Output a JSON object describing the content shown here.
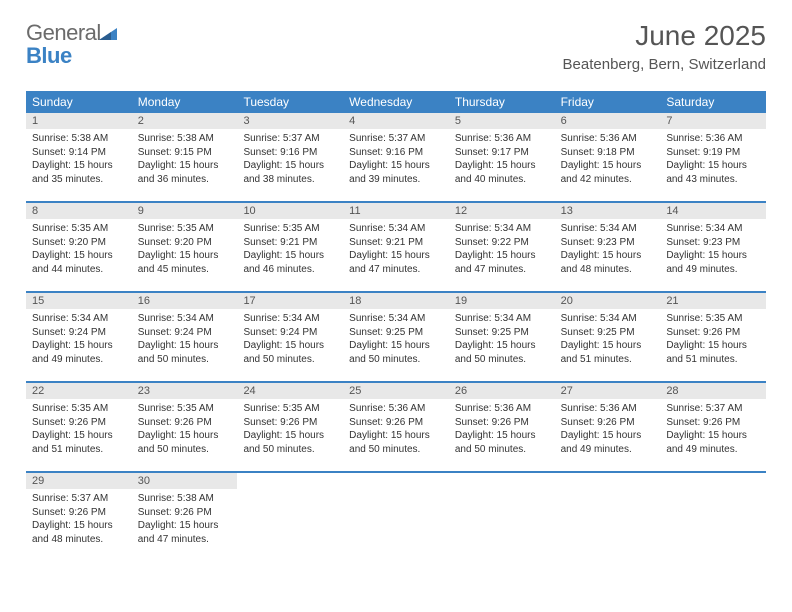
{
  "logo": {
    "top": "General",
    "bottom": "Blue"
  },
  "title": "June 2025",
  "location": "Beatenberg, Bern, Switzerland",
  "day_names": [
    "Sunday",
    "Monday",
    "Tuesday",
    "Wednesday",
    "Thursday",
    "Friday",
    "Saturday"
  ],
  "colors": {
    "header_bg": "#3b82c4",
    "header_text": "#ffffff",
    "daynum_bg": "#e8e8e8",
    "border": "#3b82c4",
    "text": "#333333"
  },
  "days": [
    {
      "n": 1,
      "sr": "5:38 AM",
      "ss": "9:14 PM",
      "dh": 15,
      "dm": 35
    },
    {
      "n": 2,
      "sr": "5:38 AM",
      "ss": "9:15 PM",
      "dh": 15,
      "dm": 36
    },
    {
      "n": 3,
      "sr": "5:37 AM",
      "ss": "9:16 PM",
      "dh": 15,
      "dm": 38
    },
    {
      "n": 4,
      "sr": "5:37 AM",
      "ss": "9:16 PM",
      "dh": 15,
      "dm": 39
    },
    {
      "n": 5,
      "sr": "5:36 AM",
      "ss": "9:17 PM",
      "dh": 15,
      "dm": 40
    },
    {
      "n": 6,
      "sr": "5:36 AM",
      "ss": "9:18 PM",
      "dh": 15,
      "dm": 42
    },
    {
      "n": 7,
      "sr": "5:36 AM",
      "ss": "9:19 PM",
      "dh": 15,
      "dm": 43
    },
    {
      "n": 8,
      "sr": "5:35 AM",
      "ss": "9:20 PM",
      "dh": 15,
      "dm": 44
    },
    {
      "n": 9,
      "sr": "5:35 AM",
      "ss": "9:20 PM",
      "dh": 15,
      "dm": 45
    },
    {
      "n": 10,
      "sr": "5:35 AM",
      "ss": "9:21 PM",
      "dh": 15,
      "dm": 46
    },
    {
      "n": 11,
      "sr": "5:34 AM",
      "ss": "9:21 PM",
      "dh": 15,
      "dm": 47
    },
    {
      "n": 12,
      "sr": "5:34 AM",
      "ss": "9:22 PM",
      "dh": 15,
      "dm": 47
    },
    {
      "n": 13,
      "sr": "5:34 AM",
      "ss": "9:23 PM",
      "dh": 15,
      "dm": 48
    },
    {
      "n": 14,
      "sr": "5:34 AM",
      "ss": "9:23 PM",
      "dh": 15,
      "dm": 49
    },
    {
      "n": 15,
      "sr": "5:34 AM",
      "ss": "9:24 PM",
      "dh": 15,
      "dm": 49
    },
    {
      "n": 16,
      "sr": "5:34 AM",
      "ss": "9:24 PM",
      "dh": 15,
      "dm": 50
    },
    {
      "n": 17,
      "sr": "5:34 AM",
      "ss": "9:24 PM",
      "dh": 15,
      "dm": 50
    },
    {
      "n": 18,
      "sr": "5:34 AM",
      "ss": "9:25 PM",
      "dh": 15,
      "dm": 50
    },
    {
      "n": 19,
      "sr": "5:34 AM",
      "ss": "9:25 PM",
      "dh": 15,
      "dm": 50
    },
    {
      "n": 20,
      "sr": "5:34 AM",
      "ss": "9:25 PM",
      "dh": 15,
      "dm": 51
    },
    {
      "n": 21,
      "sr": "5:35 AM",
      "ss": "9:26 PM",
      "dh": 15,
      "dm": 51
    },
    {
      "n": 22,
      "sr": "5:35 AM",
      "ss": "9:26 PM",
      "dh": 15,
      "dm": 51
    },
    {
      "n": 23,
      "sr": "5:35 AM",
      "ss": "9:26 PM",
      "dh": 15,
      "dm": 50
    },
    {
      "n": 24,
      "sr": "5:35 AM",
      "ss": "9:26 PM",
      "dh": 15,
      "dm": 50
    },
    {
      "n": 25,
      "sr": "5:36 AM",
      "ss": "9:26 PM",
      "dh": 15,
      "dm": 50
    },
    {
      "n": 26,
      "sr": "5:36 AM",
      "ss": "9:26 PM",
      "dh": 15,
      "dm": 50
    },
    {
      "n": 27,
      "sr": "5:36 AM",
      "ss": "9:26 PM",
      "dh": 15,
      "dm": 49
    },
    {
      "n": 28,
      "sr": "5:37 AM",
      "ss": "9:26 PM",
      "dh": 15,
      "dm": 49
    },
    {
      "n": 29,
      "sr": "5:37 AM",
      "ss": "9:26 PM",
      "dh": 15,
      "dm": 48
    },
    {
      "n": 30,
      "sr": "5:38 AM",
      "ss": "9:26 PM",
      "dh": 15,
      "dm": 47
    }
  ],
  "labels": {
    "sunrise": "Sunrise:",
    "sunset": "Sunset:",
    "daylight": "Daylight:",
    "hours": "hours",
    "and": "and",
    "minutes": "minutes."
  },
  "first_day_of_week": 0,
  "start_offset": 0
}
